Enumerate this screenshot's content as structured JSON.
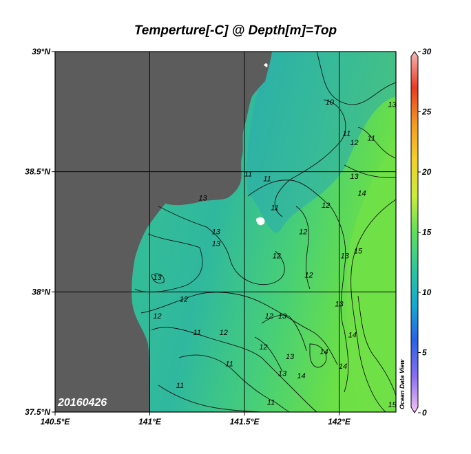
{
  "title": "Temperture[-C] @ Depth[m]=Top",
  "date_stamp": "20160426",
  "watermark": "Ocean Data View",
  "colors": {
    "land": "#5c5c5c",
    "water_cool": "#2fb0a8",
    "water_mid": "#3cc58a",
    "water_warm": "#66e048",
    "contour": "#111111",
    "grid": "#000000"
  },
  "map": {
    "lon_range": [
      140.5,
      142.3
    ],
    "lat_range": [
      37.5,
      39.0
    ],
    "lon_ticks": [
      {
        "value": 140.5,
        "label": "140.5°E"
      },
      {
        "value": 141.0,
        "label": "141°E"
      },
      {
        "value": 141.5,
        "label": "141.5°E"
      },
      {
        "value": 142.0,
        "label": "142°E"
      }
    ],
    "lat_ticks": [
      {
        "value": 37.5,
        "label": "37.5°N"
      },
      {
        "value": 38.0,
        "label": "38°N"
      },
      {
        "value": 38.5,
        "label": "38.5°N"
      },
      {
        "value": 39.0,
        "label": "39°N"
      }
    ],
    "contour_labels": [
      {
        "text": "10",
        "lon": 141.95,
        "lat": 38.78
      },
      {
        "text": "11",
        "lon": 142.04,
        "lat": 38.65
      },
      {
        "text": "12",
        "lon": 142.08,
        "lat": 38.61
      },
      {
        "text": "11",
        "lon": 142.17,
        "lat": 38.63
      },
      {
        "text": "13",
        "lon": 142.28,
        "lat": 38.77
      },
      {
        "text": "13",
        "lon": 142.08,
        "lat": 38.47
      },
      {
        "text": "14",
        "lon": 142.12,
        "lat": 38.4
      },
      {
        "text": "11",
        "lon": 141.52,
        "lat": 38.48
      },
      {
        "text": "11",
        "lon": 141.62,
        "lat": 38.46
      },
      {
        "text": "11",
        "lon": 141.66,
        "lat": 38.34
      },
      {
        "text": "13",
        "lon": 141.28,
        "lat": 38.38
      },
      {
        "text": "12",
        "lon": 141.81,
        "lat": 38.24
      },
      {
        "text": "12",
        "lon": 141.93,
        "lat": 38.35
      },
      {
        "text": "13",
        "lon": 141.35,
        "lat": 38.24
      },
      {
        "text": "13",
        "lon": 141.35,
        "lat": 38.19
      },
      {
        "text": "12",
        "lon": 141.67,
        "lat": 38.14
      },
      {
        "text": "12",
        "lon": 141.84,
        "lat": 38.06
      },
      {
        "text": "13",
        "lon": 142.03,
        "lat": 38.14
      },
      {
        "text": "15",
        "lon": 142.1,
        "lat": 38.16
      },
      {
        "text": "13",
        "lon": 141.04,
        "lat": 38.05
      },
      {
        "text": "12",
        "lon": 141.18,
        "lat": 37.96
      },
      {
        "text": "12",
        "lon": 141.04,
        "lat": 37.89
      },
      {
        "text": "13",
        "lon": 142.0,
        "lat": 37.94
      },
      {
        "text": "12",
        "lon": 141.63,
        "lat": 37.89
      },
      {
        "text": "13",
        "lon": 141.7,
        "lat": 37.89
      },
      {
        "text": "11",
        "lon": 141.25,
        "lat": 37.82
      },
      {
        "text": "12",
        "lon": 141.39,
        "lat": 37.82
      },
      {
        "text": "14",
        "lon": 142.07,
        "lat": 37.81
      },
      {
        "text": "12",
        "lon": 141.6,
        "lat": 37.76
      },
      {
        "text": "13",
        "lon": 141.74,
        "lat": 37.72
      },
      {
        "text": "14",
        "lon": 141.92,
        "lat": 37.74
      },
      {
        "text": "14",
        "lon": 142.02,
        "lat": 37.68
      },
      {
        "text": "11",
        "lon": 141.42,
        "lat": 37.69
      },
      {
        "text": "13",
        "lon": 141.7,
        "lat": 37.65
      },
      {
        "text": "14",
        "lon": 141.8,
        "lat": 37.64
      },
      {
        "text": "11",
        "lon": 141.16,
        "lat": 37.6
      },
      {
        "text": "11",
        "lon": 141.64,
        "lat": 37.53
      },
      {
        "text": "15",
        "lon": 142.28,
        "lat": 37.52
      }
    ]
  },
  "colorbar": {
    "min": 0,
    "max": 30,
    "ticks": [
      {
        "value": 30,
        "label": "30"
      },
      {
        "value": 25,
        "label": "25"
      },
      {
        "value": 20,
        "label": "20"
      },
      {
        "value": 15,
        "label": "15"
      },
      {
        "value": 10,
        "label": "10"
      },
      {
        "value": 5,
        "label": "5"
      },
      {
        "value": 0,
        "label": "0"
      }
    ],
    "stops": [
      "#f7c3f2",
      "#8a6ff2",
      "#2a62e8",
      "#16a9d0",
      "#2fc79b",
      "#5fe05a",
      "#c9ec3a",
      "#f3d12a",
      "#f49a22",
      "#ea3a22",
      "#f5b8b8"
    ]
  }
}
